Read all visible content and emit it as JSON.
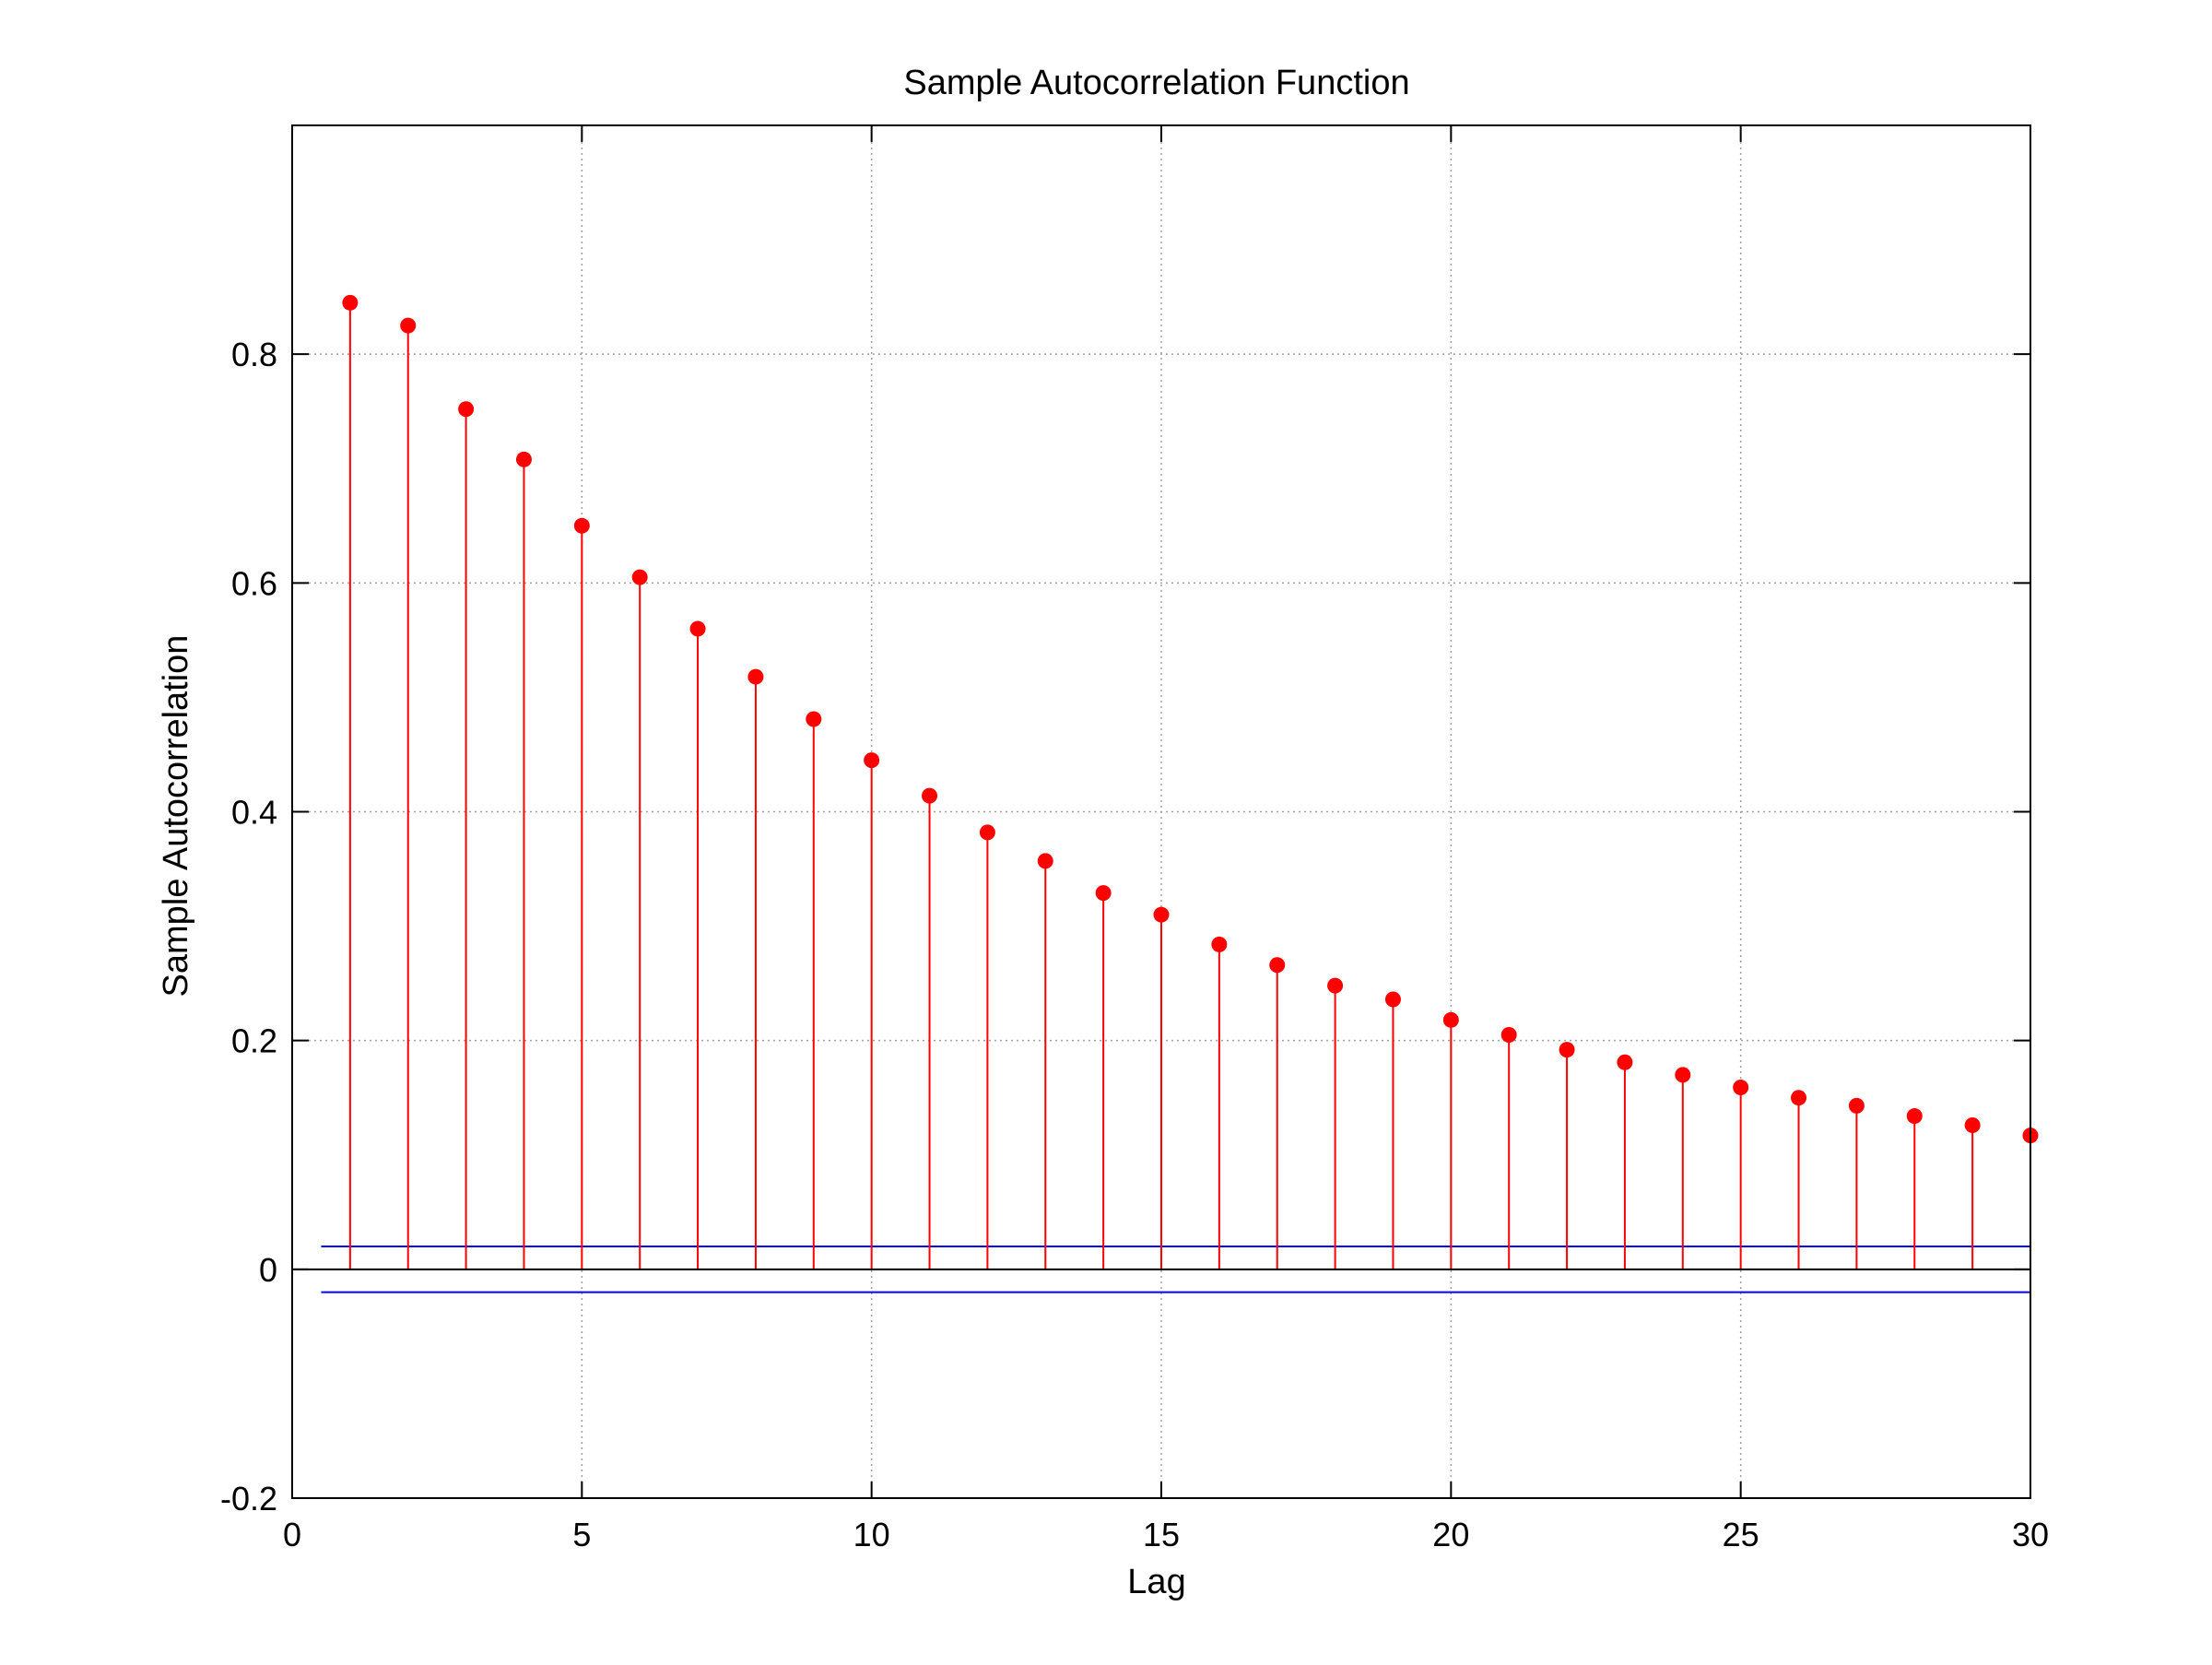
{
  "chart_data": {
    "type": "stem",
    "title": "Sample Autocorrelation Function",
    "xlabel": "Lag",
    "ylabel": "Sample Autocorrelation",
    "xlim": [
      0,
      30
    ],
    "ylim": [
      -0.2,
      1.0
    ],
    "x_ticks": [
      "0",
      "5",
      "10",
      "15",
      "20",
      "25",
      "30"
    ],
    "y_ticks": [
      "-0.2",
      "0",
      "0.2",
      "0.4",
      "0.6",
      "0.8"
    ],
    "grid": true,
    "series": [
      {
        "x": [
          1,
          2,
          3,
          4,
          5,
          6,
          7,
          8,
          9,
          10,
          11,
          12,
          13,
          14,
          15,
          16,
          17,
          18,
          19,
          20,
          21,
          22,
          23,
          24,
          25,
          26,
          27,
          28,
          29,
          30
        ],
        "values": [
          0.845,
          0.825,
          0.752,
          0.708,
          0.65,
          0.605,
          0.56,
          0.518,
          0.481,
          0.445,
          0.414,
          0.382,
          0.357,
          0.329,
          0.31,
          0.284,
          0.266,
          0.248,
          0.236,
          0.218,
          0.205,
          0.192,
          0.181,
          0.17,
          0.159,
          0.15,
          0.143,
          0.134,
          0.126,
          0.117
        ]
      }
    ],
    "confidence_bounds": [
      0.02,
      -0.02
    ],
    "colors": {
      "stem": "#ff0000",
      "bounds": "#0000ff",
      "zero_line": "#000000",
      "grid": "#a0a0a0"
    }
  }
}
